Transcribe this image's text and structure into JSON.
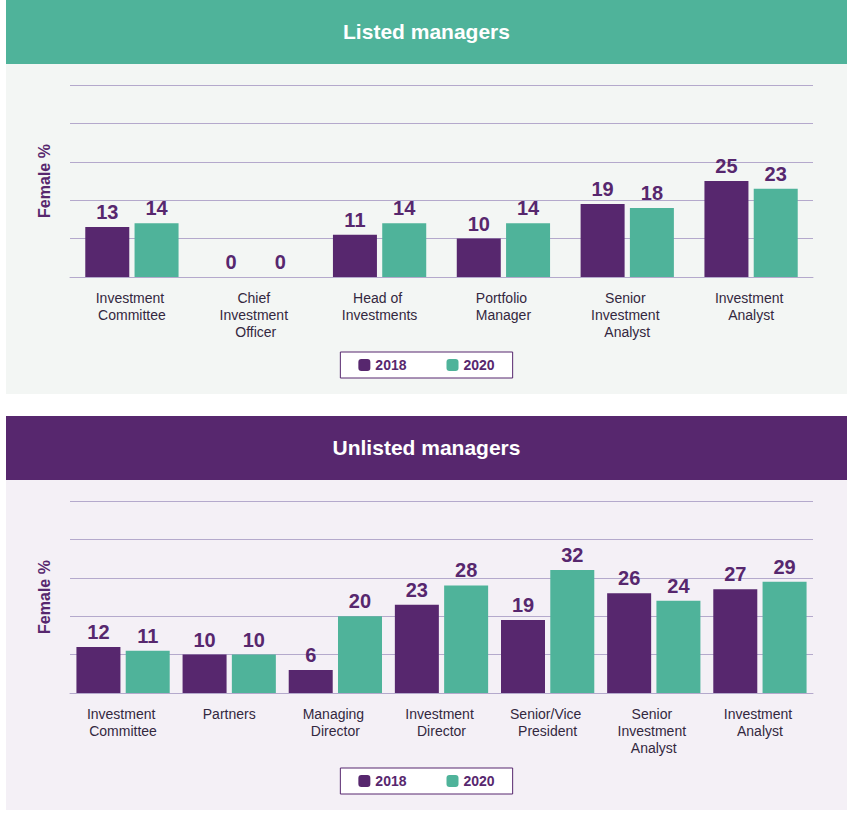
{
  "chart_data": [
    {
      "type": "bar",
      "title": "Listed managers",
      "ylabel": "Female %",
      "categories": [
        "Investment Committee",
        "Chief Investment Officer",
        "Head of Investments",
        "Portfolio Manager",
        "Senior Investment Analyst",
        "Investment Analyst"
      ],
      "series": [
        {
          "name": "2018",
          "color": "#57276e",
          "values": [
            13,
            0,
            11,
            10,
            19,
            25
          ]
        },
        {
          "name": "2020",
          "color": "#4fb39a",
          "values": [
            14,
            0,
            14,
            14,
            18,
            23
          ]
        }
      ],
      "ylim": [
        0,
        50
      ],
      "yticks": [
        0,
        10,
        20,
        30,
        40,
        50
      ],
      "grid": true,
      "data_labels": true,
      "tick_labels": "x",
      "legend": "bottom"
    },
    {
      "type": "bar",
      "title": "Unlisted managers",
      "ylabel": "Female %",
      "categories": [
        "Investment Committee",
        "Partners",
        "Managing Director",
        "Investment Director",
        "Senior/Vice President",
        "Senior Investment Analyst",
        "Investment Analyst"
      ],
      "series": [
        {
          "name": "2018",
          "color": "#57276e",
          "values": [
            12,
            10,
            6,
            23,
            19,
            26,
            27
          ]
        },
        {
          "name": "2020",
          "color": "#4fb39a",
          "values": [
            11,
            10,
            20,
            28,
            32,
            24,
            29
          ]
        }
      ],
      "ylim": [
        0,
        50
      ],
      "yticks": [
        0,
        10,
        20,
        30,
        40,
        50
      ],
      "grid": true,
      "data_labels": true,
      "tick_labels": "x",
      "legend": "bottom"
    }
  ]
}
